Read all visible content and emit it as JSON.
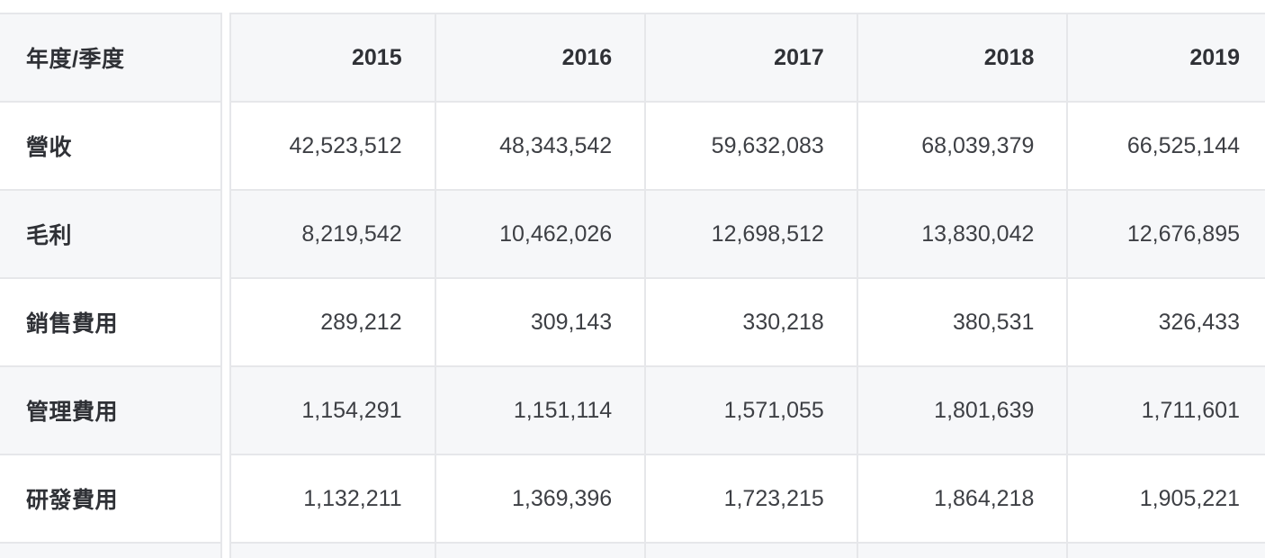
{
  "table": {
    "corner_label": "年度/季度",
    "columns": [
      "2015",
      "2016",
      "2017",
      "2018",
      "2019"
    ],
    "rows": [
      {
        "label": "營收",
        "values": [
          "42,523,512",
          "48,343,542",
          "59,632,083",
          "68,039,379",
          "66,525,144"
        ]
      },
      {
        "label": "毛利",
        "values": [
          "8,219,542",
          "10,462,026",
          "12,698,512",
          "13,830,042",
          "12,676,895"
        ]
      },
      {
        "label": "銷售費用",
        "values": [
          "289,212",
          "309,143",
          "330,218",
          "380,531",
          "326,433"
        ]
      },
      {
        "label": "管理費用",
        "values": [
          "1,154,291",
          "1,151,114",
          "1,571,055",
          "1,801,639",
          "1,711,601"
        ]
      },
      {
        "label": "研發費用",
        "values": [
          "1,132,211",
          "1,369,396",
          "1,723,215",
          "1,864,218",
          "1,905,221"
        ]
      }
    ]
  },
  "colors": {
    "header_bg": "#f6f7f9",
    "alt_row_bg": "#f6f7f9",
    "border": "#e6e7ea",
    "text": "#3d3f44"
  }
}
